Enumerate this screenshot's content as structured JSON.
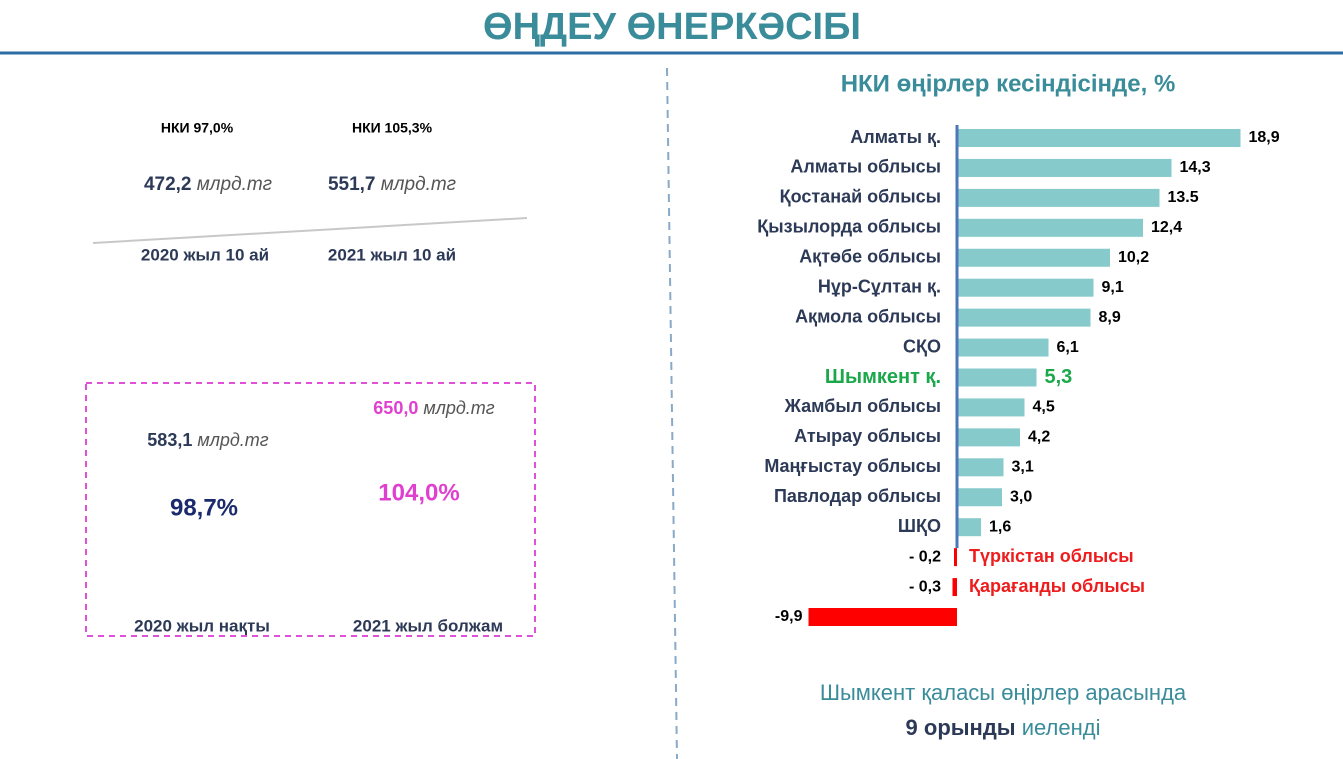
{
  "header": {
    "title": "ӨҢДЕУ ӨНЕРКӘСІБІ"
  },
  "summary": [
    {
      "nki": "НКИ 97,0%",
      "amount": "472,2",
      "unit": "млрд.тг",
      "period": "2020 жыл 10 ай"
    },
    {
      "nki": "НКИ 105,3%",
      "amount": "551,7",
      "unit": "млрд.тг",
      "period": "2021 жыл 10 ай"
    }
  ],
  "forecast": [
    {
      "amount": "583,1",
      "unit": "млрд.тг",
      "percent": "98,7%",
      "label": "2020 жыл нақты"
    },
    {
      "amount": "650,0",
      "unit": "млрд.тг",
      "percent": "104,0%",
      "label": "2021 жыл болжам"
    }
  ],
  "footer": {
    "line1": "Шымкент қаласы өңірлер арасында",
    "rank": "9 орынды",
    "rest": "иеленді"
  },
  "chart_data": {
    "type": "bar",
    "orientation": "horizontal",
    "title": "НКИ өңірлер кесіндісінде, %",
    "categories": [
      "Алматы қ.",
      "Алматы облысы",
      "Қостанай облысы",
      "Қызылорда облысы",
      "Ақтөбе облысы",
      "Нұр-Сұлтан қ.",
      "Ақмола облысы",
      "СҚО",
      "Шымкент қ.",
      "Жамбыл облысы",
      "Атырау облысы",
      "Маңғыстау облысы",
      "Павлодар облысы",
      "ШҚО",
      "Түркістан облысы",
      "Қарағанды облысы",
      null
    ],
    "values": [
      18.9,
      14.3,
      13.5,
      12.4,
      10.2,
      9.1,
      8.9,
      6.1,
      5.3,
      4.5,
      4.2,
      3.1,
      3.0,
      1.6,
      -0.2,
      -0.3,
      -9.9
    ],
    "value_labels": [
      "18,9",
      "14,3",
      "13.5",
      "12,4",
      "10,2",
      "9,1",
      "8,9",
      "6,1",
      "5,3",
      "4,5",
      "4,2",
      "3,1",
      "3,0",
      "1,6",
      "- 0,2",
      "- 0,3",
      "-9,9"
    ],
    "label_colors": [
      "#2d3a57",
      "#2d3a57",
      "#2d3a57",
      "#2d3a57",
      "#2d3a57",
      "#2d3a57",
      "#2d3a57",
      "#2d3a57",
      "#1aa84a",
      "#2d3a57",
      "#2d3a57",
      "#2d3a57",
      "#2d3a57",
      "#2d3a57",
      "#ee1c1c",
      "#ee1c1c",
      "#ee1c1c"
    ],
    "color": "#86cacb",
    "negative_color": "#ff0000",
    "xlim": [
      -10,
      20
    ]
  }
}
